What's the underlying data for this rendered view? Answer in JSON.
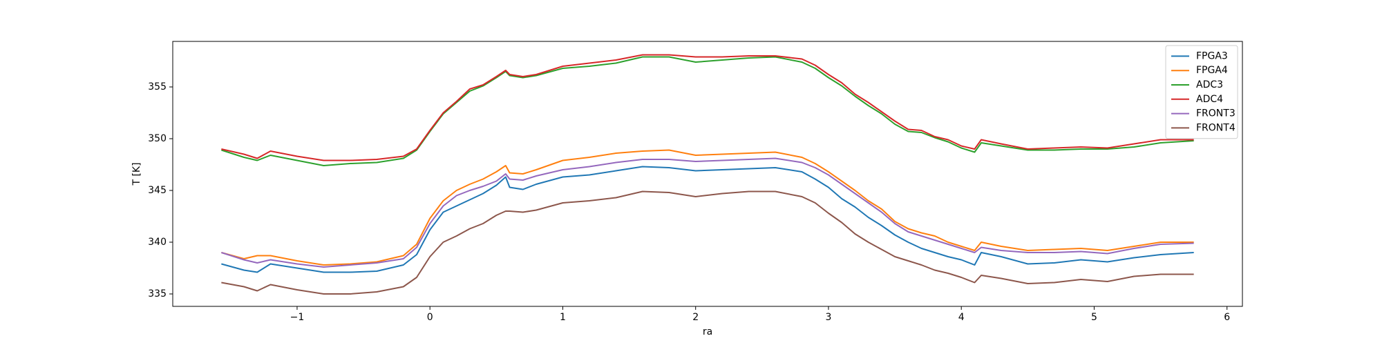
{
  "chart_data": {
    "type": "line",
    "xlabel": "ra",
    "ylabel": "T [K]",
    "x": [
      -1.57,
      -1.4,
      -1.3,
      -1.2,
      -1.0,
      -0.8,
      -0.6,
      -0.4,
      -0.2,
      -0.1,
      0,
      0.1,
      0.2,
      0.3,
      0.4,
      0.5,
      0.57,
      0.6,
      0.7,
      0.8,
      1.0,
      1.2,
      1.4,
      1.6,
      1.8,
      2.0,
      2.2,
      2.4,
      2.6,
      2.8,
      2.9,
      3.0,
      3.1,
      3.2,
      3.3,
      3.4,
      3.5,
      3.6,
      3.7,
      3.8,
      3.9,
      4.0,
      4.1,
      4.15,
      4.3,
      4.5,
      4.7,
      4.9,
      5.1,
      5.3,
      5.5,
      5.75
    ],
    "series": [
      {
        "name": "FPGA3",
        "color": "#1f77b4",
        "values": [
          337.9,
          337.3,
          337.1,
          337.9,
          337.5,
          337.1,
          337.1,
          337.2,
          337.8,
          338.8,
          341.2,
          342.9,
          343.5,
          344.1,
          344.7,
          345.5,
          346.3,
          345.3,
          345.1,
          345.6,
          346.3,
          346.5,
          346.9,
          347.3,
          347.2,
          346.9,
          347.0,
          347.1,
          347.2,
          346.8,
          346.1,
          345.3,
          344.2,
          343.4,
          342.4,
          341.6,
          340.7,
          340.0,
          339.4,
          339.0,
          338.6,
          338.3,
          337.8,
          339.0,
          338.6,
          337.9,
          338.0,
          338.3,
          338.1,
          338.5,
          338.8,
          339.0
        ]
      },
      {
        "name": "FPGA4",
        "color": "#ff7f0e",
        "values": [
          339.0,
          338.4,
          338.7,
          338.7,
          338.2,
          337.8,
          337.9,
          338.1,
          338.7,
          339.8,
          342.3,
          344.0,
          345.0,
          345.6,
          346.1,
          346.8,
          347.4,
          346.7,
          346.6,
          347.0,
          347.9,
          348.2,
          348.6,
          348.8,
          348.9,
          348.4,
          348.5,
          348.6,
          348.7,
          348.2,
          347.6,
          346.8,
          345.9,
          345.0,
          344.0,
          343.2,
          342.0,
          341.3,
          340.9,
          340.6,
          340.0,
          339.6,
          339.2,
          340.0,
          339.6,
          339.2,
          339.3,
          339.4,
          339.2,
          339.6,
          340.0,
          340.0
        ]
      },
      {
        "name": "ADC3",
        "color": "#2ca02c",
        "values": [
          348.9,
          348.2,
          347.9,
          348.4,
          347.9,
          347.4,
          347.6,
          347.7,
          348.1,
          348.9,
          350.7,
          352.4,
          353.5,
          354.6,
          355.1,
          355.9,
          356.5,
          356.1,
          355.9,
          356.1,
          356.8,
          357.0,
          357.3,
          357.9,
          357.9,
          357.4,
          357.6,
          357.8,
          357.9,
          357.4,
          356.8,
          355.9,
          355.1,
          354.1,
          353.2,
          352.4,
          351.4,
          350.7,
          350.6,
          350.1,
          349.7,
          349.1,
          348.7,
          349.6,
          349.3,
          348.9,
          348.9,
          349.0,
          349.0,
          349.2,
          349.6,
          349.8
        ]
      },
      {
        "name": "ADC4",
        "color": "#d62728",
        "values": [
          349.0,
          348.5,
          348.1,
          348.8,
          348.3,
          347.9,
          347.9,
          348.0,
          348.3,
          349.0,
          350.8,
          352.5,
          353.6,
          354.8,
          355.2,
          356.0,
          356.6,
          356.2,
          356.0,
          356.2,
          357.0,
          357.3,
          357.6,
          358.1,
          358.1,
          357.9,
          357.9,
          358.0,
          358.0,
          357.7,
          357.1,
          356.2,
          355.4,
          354.3,
          353.5,
          352.6,
          351.7,
          350.9,
          350.8,
          350.2,
          349.9,
          349.3,
          349.0,
          349.9,
          349.5,
          349.0,
          349.1,
          349.2,
          349.1,
          349.5,
          349.9,
          349.9
        ]
      },
      {
        "name": "FRONT3",
        "color": "#9467bd",
        "values": [
          339.0,
          338.3,
          338.0,
          338.3,
          337.9,
          337.6,
          337.8,
          338.0,
          338.4,
          339.5,
          341.8,
          343.5,
          344.5,
          345.0,
          345.4,
          345.9,
          346.6,
          346.1,
          346.0,
          346.4,
          347.0,
          347.3,
          347.7,
          348.0,
          348.0,
          347.8,
          347.9,
          348.0,
          348.1,
          347.7,
          347.2,
          346.5,
          345.6,
          344.7,
          343.8,
          342.9,
          341.8,
          341.0,
          340.6,
          340.2,
          339.8,
          339.4,
          339.0,
          339.5,
          339.2,
          339.0,
          339.0,
          339.1,
          338.9,
          339.4,
          339.8,
          339.9
        ]
      },
      {
        "name": "FRONT4",
        "color": "#8c564b",
        "values": [
          336.1,
          335.7,
          335.3,
          335.9,
          335.4,
          335.0,
          335.0,
          335.2,
          335.7,
          336.6,
          338.6,
          340.0,
          340.6,
          341.3,
          341.8,
          342.6,
          343.0,
          343.0,
          342.9,
          343.1,
          343.8,
          344.0,
          344.3,
          344.9,
          344.8,
          344.4,
          344.7,
          344.9,
          344.9,
          344.4,
          343.8,
          342.8,
          341.9,
          340.8,
          340.0,
          339.3,
          338.6,
          338.2,
          337.8,
          337.3,
          337.0,
          336.6,
          336.1,
          336.8,
          336.5,
          336.0,
          336.1,
          336.4,
          336.2,
          336.7,
          336.9,
          336.9
        ]
      }
    ],
    "xlim": [
      -1.936,
      6.116
    ],
    "ylim": [
      333.8,
      359.4
    ],
    "xticks": [
      {
        "value": -1,
        "label": "−1"
      },
      0,
      1,
      2,
      3,
      4,
      5,
      6
    ],
    "yticks": [
      335,
      340,
      345,
      350,
      355
    ],
    "legend": "upper right",
    "grid": false
  }
}
